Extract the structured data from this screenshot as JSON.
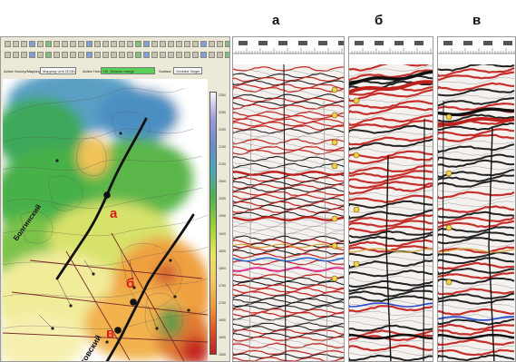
{
  "panel_letters": {
    "a": "а",
    "b": "б",
    "c": "в"
  },
  "app": {
    "selector_labels": {
      "survey": "Active Survey/Mapping Unit",
      "horizon": "Active Horizon",
      "surface": "Surface"
    },
    "survey_value": "Mapping Unit 2D/3D",
    "horizon_value": "H2_Seismic merge",
    "surface_value": "Gridded Single"
  },
  "map": {
    "fault_labels": {
      "upper": "Болгинский",
      "lower": "Атовский"
    },
    "point_letters": {
      "a": "а",
      "b": "б",
      "c": "в"
    },
    "colors": {
      "fault": "#111111",
      "profile": "#7a2a2a",
      "point": "#111111",
      "red_letter": "#d81c1c"
    },
    "colorbar_ticks": [
      "2300",
      "2250",
      "2200",
      "2150",
      "2100",
      "2050",
      "2000",
      "1950",
      "1900",
      "1850",
      "1800",
      "1750",
      "1700",
      "1650",
      "1600",
      "1550"
    ]
  },
  "seismic": {
    "panel_a": {
      "traces_color": "#b81c1c"
    },
    "panel_b": {
      "traces_color": "#c21818"
    },
    "panel_c": {
      "traces_color": "#c21818"
    }
  }
}
